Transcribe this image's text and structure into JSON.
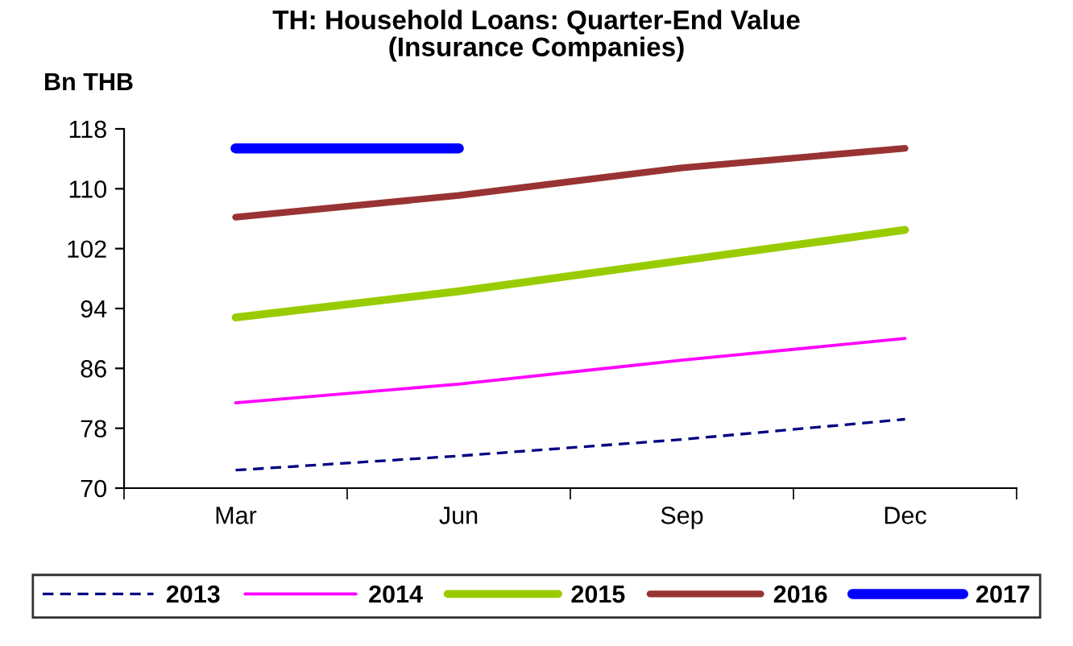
{
  "chart_data": {
    "type": "line",
    "title": "TH: Household Loans: Quarter-End Value\n(Insurance Companies)",
    "ylabel": "Bn THB",
    "categories": [
      "Mar",
      "Jun",
      "Sep",
      "Dec"
    ],
    "series": [
      {
        "name": "2013",
        "color": "#000080",
        "line_style": "dashed",
        "values": [
          72.4,
          74.3,
          76.5,
          79.2
        ]
      },
      {
        "name": "2014",
        "color": "#ff00ff",
        "values": [
          81.4,
          83.9,
          87.1,
          90.0
        ]
      },
      {
        "name": "2015",
        "color": "#99cc00",
        "values": [
          92.8,
          96.3,
          100.4,
          104.5
        ]
      },
      {
        "name": "2016",
        "color": "#993333",
        "values": [
          106.2,
          109.1,
          112.8,
          115.4
        ]
      },
      {
        "name": "2017",
        "color": "#0000ff",
        "values": [
          115.4,
          115.4,
          null,
          null
        ]
      }
    ],
    "ylim": [
      70,
      118
    ],
    "yticks": [
      70,
      78,
      86,
      94,
      102,
      110,
      118
    ],
    "grid": false,
    "legend": "bottom",
    "marker": "none",
    "line_style": "solid"
  }
}
